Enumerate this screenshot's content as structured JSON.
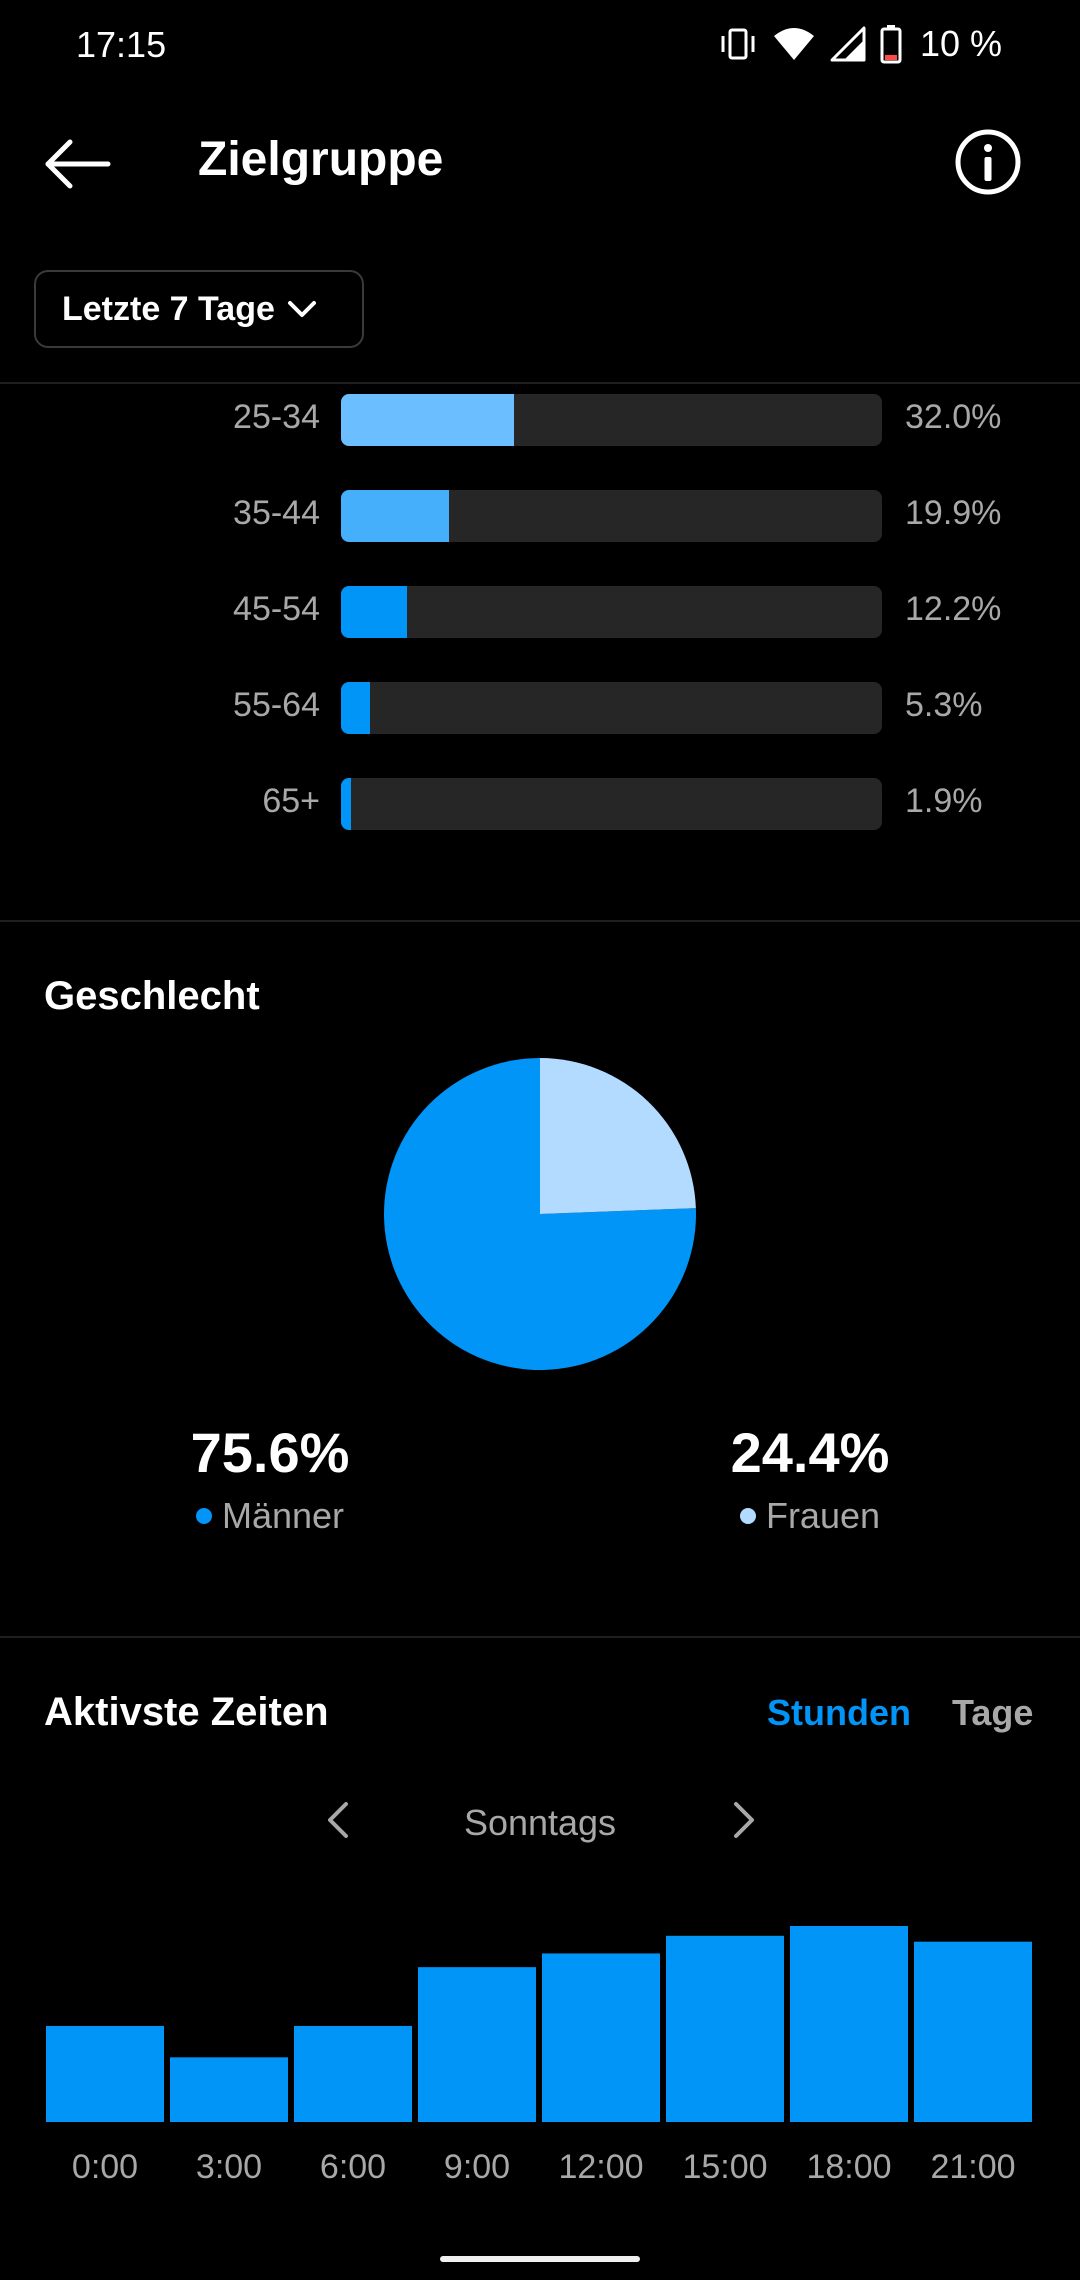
{
  "status_bar": {
    "time": "17:15",
    "battery_percent": "10 %",
    "icons": [
      "vibrate-icon",
      "wifi-icon",
      "signal-icon",
      "battery-icon"
    ]
  },
  "header": {
    "title": "Zielgruppe",
    "back_icon": "arrow-left-icon",
    "info_icon": "info-icon"
  },
  "range_select": {
    "label": "Letzte 7 Tage"
  },
  "colors": {
    "primary_blue": "#0095F6",
    "mid_blue": "#4CB5F9",
    "light_blue": "#B3DBFF",
    "track": "#262626",
    "muted_text": "#A8A8A8"
  },
  "age": {
    "rows": [
      {
        "label": "25-34",
        "value": 32.0,
        "pct_text": "32.0%",
        "color": "#6BBEFF"
      },
      {
        "label": "35-44",
        "value": 19.9,
        "pct_text": "19.9%",
        "color": "#45AFFB"
      },
      {
        "label": "45-54",
        "value": 12.2,
        "pct_text": "12.2%",
        "color": "#0095F6"
      },
      {
        "label": "55-64",
        "value": 5.3,
        "pct_text": "5.3%",
        "color": "#0095F6"
      },
      {
        "label": "65+",
        "value": 1.9,
        "pct_text": "1.9%",
        "color": "#0095F6"
      }
    ]
  },
  "gender": {
    "title": "Geschlecht",
    "men": {
      "value_text": "75.6%",
      "value": 75.6,
      "label": "Männer",
      "color": "#0095F6"
    },
    "women": {
      "value_text": "24.4%",
      "value": 24.4,
      "label": "Frauen",
      "color": "#B3DBFF"
    }
  },
  "active_times": {
    "title": "Aktivste Zeiten",
    "toggle": {
      "hours": "Stunden",
      "days": "Tage",
      "selected": "hours"
    },
    "day_label": "Sonntags"
  },
  "chart_data": [
    {
      "type": "bar",
      "orientation": "horizontal",
      "categories": [
        "25-34",
        "35-44",
        "45-54",
        "55-64",
        "65+"
      ],
      "values": [
        32.0,
        19.9,
        12.2,
        5.3,
        1.9
      ],
      "unit": "%"
    },
    {
      "type": "pie",
      "title": "Geschlecht",
      "categories": [
        "Männer",
        "Frauen"
      ],
      "values": [
        75.6,
        24.4
      ]
    },
    {
      "type": "bar",
      "title": "Aktivste Zeiten",
      "categories": [
        "0:00",
        "3:00",
        "6:00",
        "9:00",
        "12:00",
        "15:00",
        "18:00",
        "21:00"
      ],
      "values": [
        49,
        33,
        49,
        79,
        86,
        95,
        100,
        92
      ],
      "ylim": [
        0,
        100
      ],
      "grid": false
    }
  ]
}
